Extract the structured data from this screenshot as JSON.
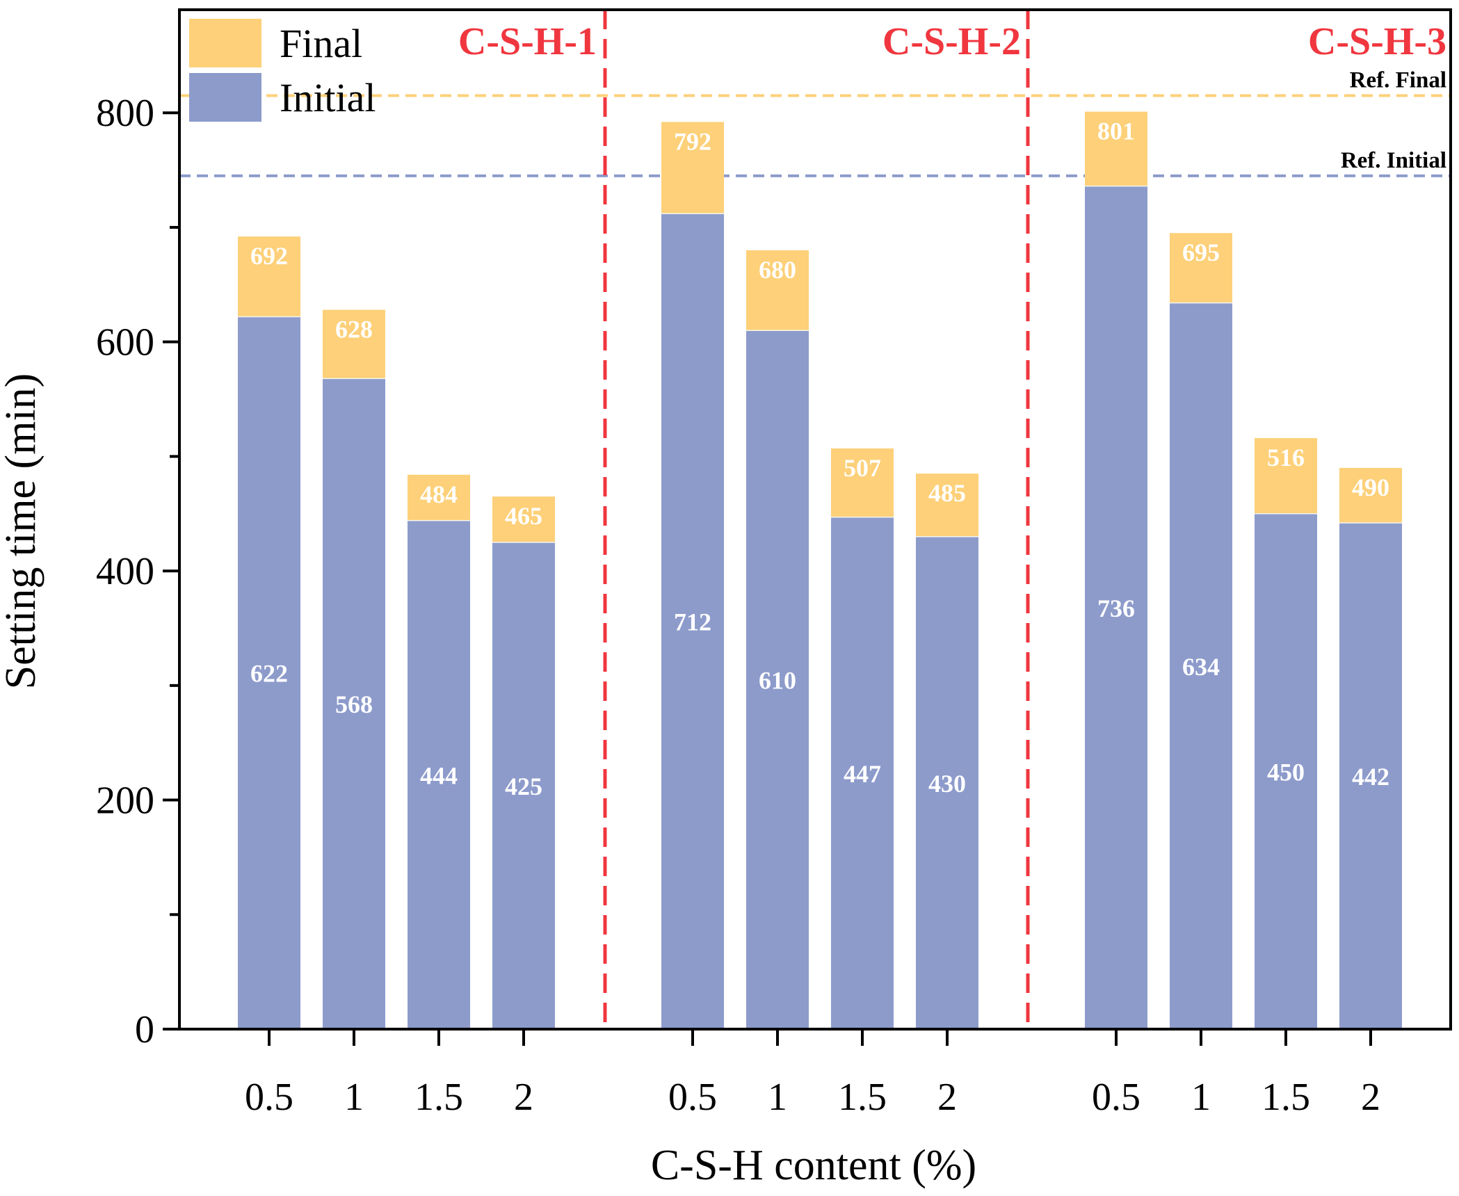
{
  "chart_data": {
    "type": "bar",
    "stacking": "overlay",
    "title": "",
    "xlabel": "C-S-H content (%)",
    "ylabel": "Setting time (min)",
    "ylim": [
      0,
      890
    ],
    "yticks": [
      0,
      200,
      400,
      600,
      800
    ],
    "groups": [
      {
        "label": "C-S-H-1",
        "categories": [
          "0.5",
          "1",
          "1.5",
          "2"
        ],
        "initial": [
          622,
          568,
          444,
          425
        ],
        "final": [
          692,
          628,
          484,
          465
        ]
      },
      {
        "label": "C-S-H-2",
        "categories": [
          "0.5",
          "1",
          "1.5",
          "2"
        ],
        "initial": [
          712,
          610,
          447,
          430
        ],
        "final": [
          792,
          680,
          507,
          485
        ]
      },
      {
        "label": "C-S-H-3",
        "categories": [
          "0.5",
          "1",
          "1.5",
          "2"
        ],
        "initial": [
          736,
          634,
          450,
          442
        ],
        "final": [
          801,
          695,
          516,
          490
        ]
      }
    ],
    "series": [
      {
        "name": "Final",
        "color": "#fdd079"
      },
      {
        "name": "Initial",
        "color": "#8d9bcb"
      }
    ],
    "reference_lines": [
      {
        "label": "Ref. Final",
        "value": 815,
        "color": "#fdd079"
      },
      {
        "label": "Ref. Initial",
        "value": 745,
        "color": "#8d9bcb"
      }
    ],
    "legend_position": "top-left",
    "group_label_color": "#f0363f",
    "separator_color": "#f0363f"
  }
}
